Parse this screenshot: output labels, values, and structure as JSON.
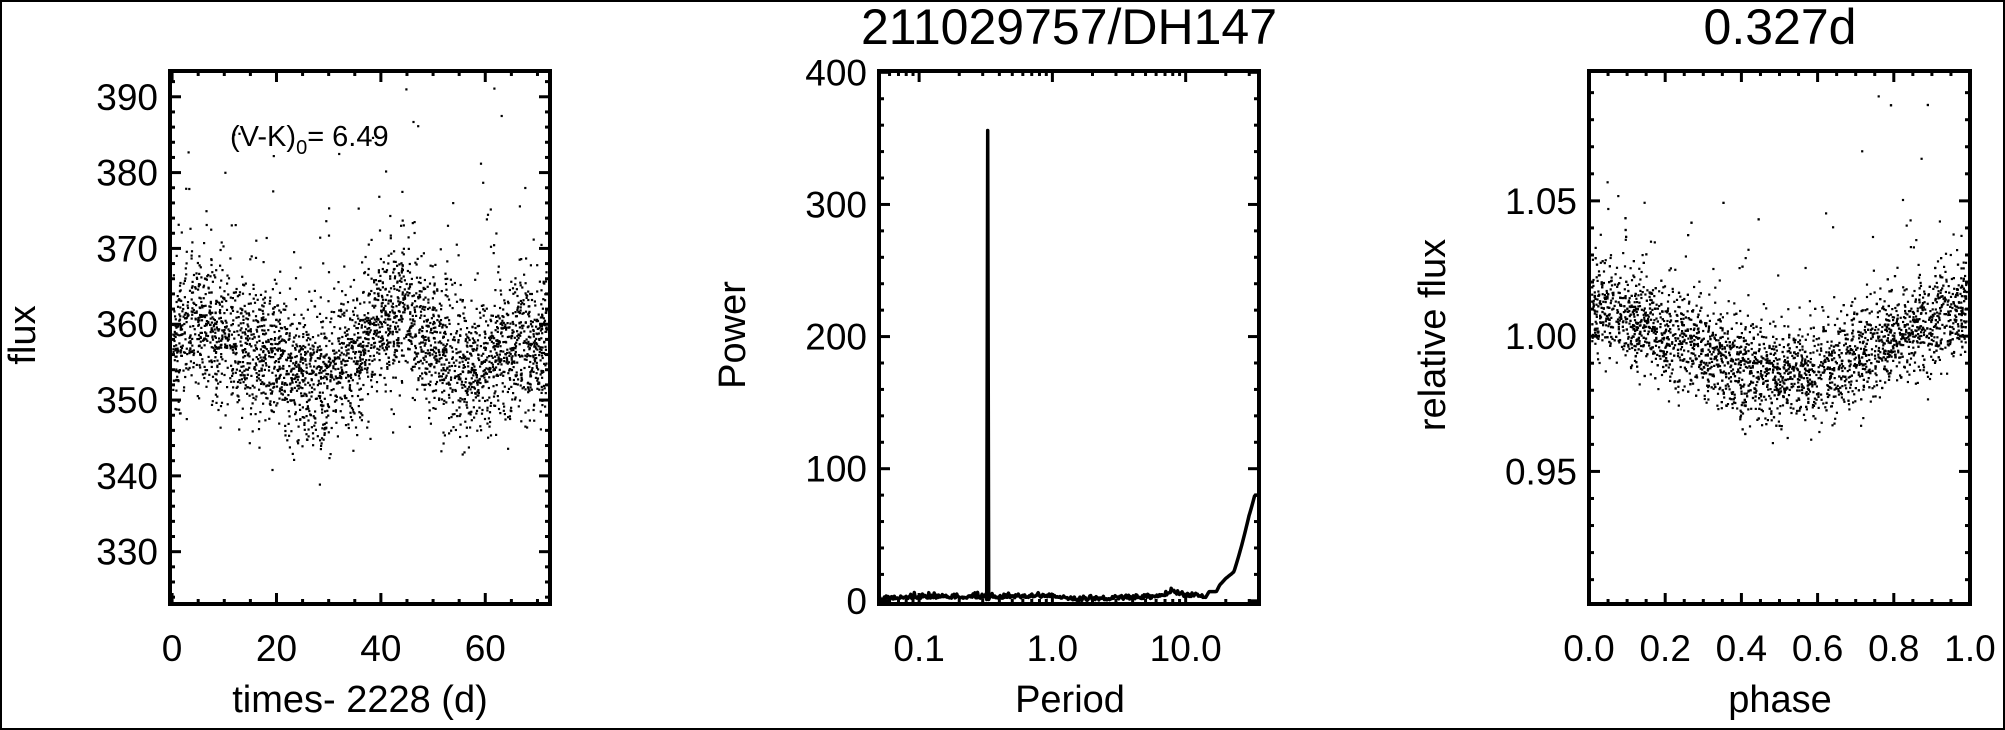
{
  "chart_data": [
    {
      "type": "scatter",
      "title": "",
      "xlabel": "times- 2228 (d)",
      "ylabel": "flux",
      "xlim": [
        -0.4,
        72.4
      ],
      "ylim": [
        323.1,
        393.4
      ],
      "xticks": [
        0,
        20,
        40,
        60
      ],
      "xtick_labels": [
        "0",
        "20",
        "40",
        "60"
      ],
      "yticks": [
        330,
        340,
        350,
        360,
        370,
        380,
        390
      ],
      "ytick_labels": [
        "330",
        "340",
        "350",
        "360",
        "370",
        "380",
        "390"
      ],
      "annotation": {
        "prefix": "(V-K)",
        "subscript": "0",
        "suffix": "= 6.49"
      },
      "grid": false,
      "point_color": "#000000",
      "trend": {
        "x": [
          0,
          5,
          10,
          15,
          20,
          25,
          30,
          35,
          40,
          45,
          50,
          55,
          60,
          65,
          70,
          72
        ],
        "y": [
          358,
          360,
          358,
          357,
          355,
          353,
          353,
          356,
          360,
          362,
          357,
          355,
          354,
          358,
          356,
          357
        ]
      },
      "scatter_sigma": 4.5,
      "n_points": 3300
    },
    {
      "type": "line",
      "title": "211029757/DH147",
      "xlabel": "Period",
      "ylabel": "Power",
      "xscale": "log",
      "xlim": [
        0.05,
        35.5
      ],
      "ylim": [
        -2.4,
        401
      ],
      "xticks": [
        0.1,
        1.0,
        10.0
      ],
      "xtick_labels": [
        "0.1",
        "1.0",
        "10.0"
      ],
      "yticks": [
        0,
        100,
        200,
        300,
        400
      ],
      "ytick_labels": [
        "0",
        "100",
        "200",
        "300",
        "400"
      ],
      "grid": false,
      "line_color": "#000000",
      "peak": {
        "period": 0.327,
        "power": 356
      },
      "series": {
        "x": [
          0.05,
          0.1,
          0.2,
          0.32,
          0.327,
          0.335,
          0.5,
          1.0,
          1.5,
          3.0,
          6.0,
          8.0,
          10.0,
          12.0,
          14.0,
          15.0,
          17.0,
          18.0,
          20.0,
          23.0,
          26.0,
          30.0,
          33.0,
          35.5
        ],
        "y": [
          1,
          2,
          2,
          2,
          356,
          2,
          2,
          3,
          0,
          1,
          2,
          6,
          3,
          3,
          2,
          7,
          7,
          12,
          17,
          22,
          40,
          65,
          80,
          80
        ]
      }
    },
    {
      "type": "scatter",
      "title": "0.327d",
      "xlabel": "phase",
      "ylabel": "relative flux",
      "xlim": [
        0.0,
        1.0
      ],
      "ylim": [
        0.901,
        1.098
      ],
      "xticks": [
        0.0,
        0.2,
        0.4,
        0.6,
        0.8,
        1.0
      ],
      "xtick_labels": [
        "0.0",
        "0.2",
        "0.4",
        "0.6",
        "0.8",
        "1.0"
      ],
      "yticks": [
        0.95,
        1.0,
        1.05
      ],
      "ytick_labels": [
        "0.95",
        "1.00",
        "1.05"
      ],
      "grid": false,
      "point_color": "#000000",
      "trend": {
        "x": [
          0.0,
          0.1,
          0.2,
          0.3,
          0.4,
          0.5,
          0.6,
          0.7,
          0.8,
          0.9,
          1.0
        ],
        "y": [
          1.012,
          1.008,
          1.002,
          0.995,
          0.988,
          0.985,
          0.986,
          0.992,
          1.0,
          1.005,
          1.01
        ]
      },
      "scatter_sigma": 0.009,
      "n_points": 3300
    }
  ]
}
